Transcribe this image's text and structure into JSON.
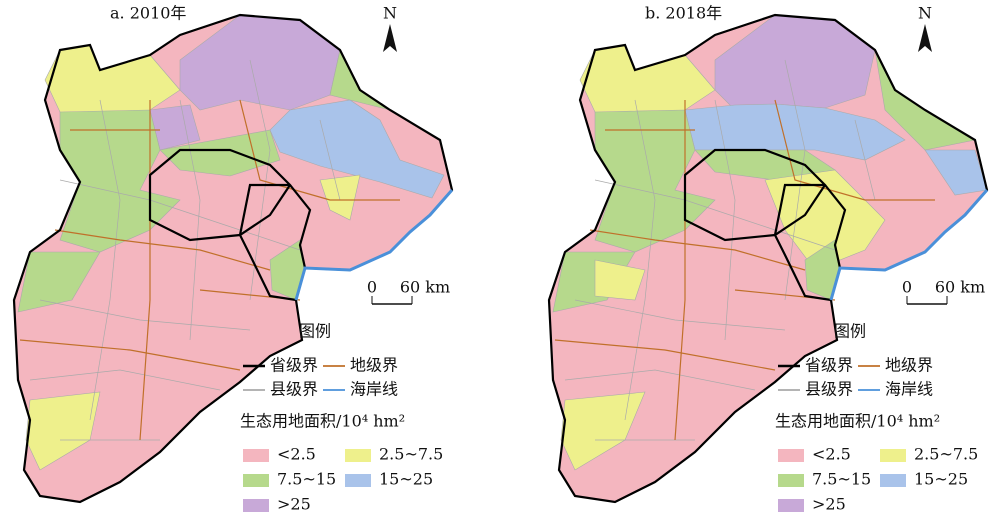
{
  "panels": [
    {
      "title": "a. 2010年",
      "north": "N",
      "scale": {
        "zero": "0",
        "distance": "60 km"
      }
    },
    {
      "title": "b. 2018年",
      "north": "N",
      "scale": {
        "zero": "0",
        "distance": "60 km"
      }
    }
  ],
  "legend": {
    "title": "图例",
    "boundaries": [
      {
        "label": "省级界",
        "color": "#000000"
      },
      {
        "label": "地级界",
        "color": "#c0702a"
      },
      {
        "label": "县级界",
        "color": "#aaaaaa"
      },
      {
        "label": "海岸线",
        "color": "#4a90d9"
      }
    ],
    "classes_title": "生态用地面积/10⁴ hm²",
    "classes": [
      {
        "label": "<2.5",
        "color": "#f4b6bf"
      },
      {
        "label": "2.5~7.5",
        "color": "#eef08c"
      },
      {
        "label": "7.5~15",
        "color": "#b6d98c"
      },
      {
        "label": "15~25",
        "color": "#a9c3ea"
      },
      {
        "label": ">25",
        "color": "#c8a9d8"
      }
    ]
  }
}
